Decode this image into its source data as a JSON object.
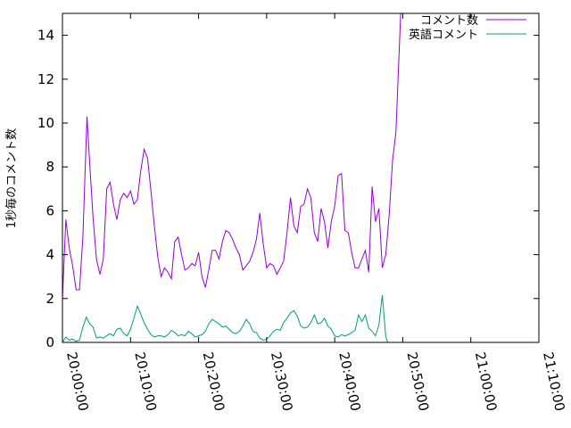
{
  "chart_data": {
    "type": "line",
    "ylabel": "1秒毎のコメント数",
    "xlabel": "",
    "ylim": [
      0,
      15
    ],
    "yticks": [
      0,
      2,
      4,
      6,
      8,
      10,
      12,
      14
    ],
    "xlim_minutes": [
      0,
      70
    ],
    "xticks": [
      {
        "label": "20:00:00",
        "minute": 0
      },
      {
        "label": "20:10:00",
        "minute": 10
      },
      {
        "label": "20:20:00",
        "minute": 20
      },
      {
        "label": "20:30:00",
        "minute": 30
      },
      {
        "label": "20:40:00",
        "minute": 40
      },
      {
        "label": "20:50:00",
        "minute": 50
      },
      {
        "label": "21:00:00",
        "minute": 60
      },
      {
        "label": "21:10:00",
        "minute": 70
      }
    ],
    "legend_position": "top-right",
    "grid": false,
    "series": [
      {
        "name": "コメント数",
        "color": "#9400d3",
        "points": [
          [
            0.0,
            2.0
          ],
          [
            0.5,
            5.6
          ],
          [
            1.0,
            4.3
          ],
          [
            1.5,
            3.5
          ],
          [
            2.0,
            2.4
          ],
          [
            2.5,
            2.4
          ],
          [
            3.0,
            4.8
          ],
          [
            3.6,
            10.3
          ],
          [
            4.0,
            8.2
          ],
          [
            4.5,
            5.7
          ],
          [
            5.0,
            3.8
          ],
          [
            5.5,
            3.1
          ],
          [
            6.0,
            3.8
          ],
          [
            6.5,
            7.0
          ],
          [
            7.0,
            7.3
          ],
          [
            7.5,
            6.3
          ],
          [
            8.0,
            5.6
          ],
          [
            8.5,
            6.5
          ],
          [
            9.0,
            6.8
          ],
          [
            9.5,
            6.6
          ],
          [
            10.0,
            6.9
          ],
          [
            10.5,
            6.3
          ],
          [
            11.0,
            6.5
          ],
          [
            11.5,
            7.8
          ],
          [
            12.0,
            8.8
          ],
          [
            12.5,
            8.4
          ],
          [
            13.0,
            6.9
          ],
          [
            13.5,
            5.3
          ],
          [
            14.0,
            3.9
          ],
          [
            14.5,
            3.0
          ],
          [
            15.0,
            3.4
          ],
          [
            15.5,
            3.2
          ],
          [
            16.0,
            2.9
          ],
          [
            16.5,
            4.6
          ],
          [
            17.0,
            4.8
          ],
          [
            17.5,
            4.0
          ],
          [
            18.0,
            3.3
          ],
          [
            18.5,
            3.4
          ],
          [
            19.0,
            3.6
          ],
          [
            19.5,
            3.5
          ],
          [
            20.0,
            4.1
          ],
          [
            20.5,
            3.0
          ],
          [
            21.0,
            2.5
          ],
          [
            21.5,
            3.3
          ],
          [
            22.0,
            4.2
          ],
          [
            22.5,
            4.2
          ],
          [
            23.0,
            3.8
          ],
          [
            23.5,
            4.6
          ],
          [
            24.0,
            5.1
          ],
          [
            24.5,
            5.0
          ],
          [
            25.0,
            4.7
          ],
          [
            25.5,
            4.3
          ],
          [
            26.0,
            4.0
          ],
          [
            26.5,
            3.3
          ],
          [
            27.0,
            3.5
          ],
          [
            27.5,
            3.7
          ],
          [
            28.0,
            4.1
          ],
          [
            28.5,
            4.7
          ],
          [
            29.0,
            5.9
          ],
          [
            29.5,
            4.5
          ],
          [
            30.0,
            3.4
          ],
          [
            30.5,
            3.6
          ],
          [
            31.0,
            3.5
          ],
          [
            31.5,
            3.1
          ],
          [
            32.0,
            3.4
          ],
          [
            32.5,
            3.7
          ],
          [
            33.0,
            5.0
          ],
          [
            33.5,
            6.6
          ],
          [
            34.0,
            5.3
          ],
          [
            34.5,
            5.0
          ],
          [
            35.0,
            6.2
          ],
          [
            35.5,
            6.3
          ],
          [
            36.0,
            7.0
          ],
          [
            36.5,
            6.6
          ],
          [
            37.0,
            5.0
          ],
          [
            37.5,
            4.6
          ],
          [
            38.0,
            6.1
          ],
          [
            38.5,
            5.5
          ],
          [
            39.0,
            4.3
          ],
          [
            39.5,
            5.5
          ],
          [
            40.0,
            6.2
          ],
          [
            40.5,
            7.6
          ],
          [
            41.0,
            7.7
          ],
          [
            41.5,
            5.1
          ],
          [
            42.0,
            5.0
          ],
          [
            42.5,
            4.1
          ],
          [
            43.0,
            3.4
          ],
          [
            43.5,
            3.4
          ],
          [
            44.0,
            3.8
          ],
          [
            44.5,
            4.2
          ],
          [
            45.0,
            3.2
          ],
          [
            45.5,
            7.1
          ],
          [
            46.0,
            5.5
          ],
          [
            46.5,
            6.1
          ],
          [
            47.0,
            3.4
          ],
          [
            47.5,
            4.0
          ],
          [
            48.0,
            5.8
          ],
          [
            48.5,
            8.3
          ],
          [
            49.0,
            9.6
          ],
          [
            49.7,
            15.0
          ]
        ]
      },
      {
        "name": "英語コメント",
        "color": "#009e73",
        "points": [
          [
            0.0,
            0.0
          ],
          [
            0.5,
            0.25
          ],
          [
            1.0,
            0.1
          ],
          [
            1.5,
            0.15
          ],
          [
            2.0,
            0.05
          ],
          [
            2.5,
            0.1
          ],
          [
            3.0,
            0.7
          ],
          [
            3.5,
            1.15
          ],
          [
            4.0,
            0.85
          ],
          [
            4.5,
            0.7
          ],
          [
            5.0,
            0.2
          ],
          [
            5.5,
            0.25
          ],
          [
            6.0,
            0.2
          ],
          [
            6.5,
            0.3
          ],
          [
            7.0,
            0.4
          ],
          [
            7.5,
            0.3
          ],
          [
            8.0,
            0.6
          ],
          [
            8.5,
            0.65
          ],
          [
            9.0,
            0.4
          ],
          [
            9.5,
            0.3
          ],
          [
            10.0,
            0.6
          ],
          [
            10.5,
            1.1
          ],
          [
            11.0,
            1.65
          ],
          [
            11.5,
            1.3
          ],
          [
            12.0,
            0.9
          ],
          [
            12.5,
            0.6
          ],
          [
            13.0,
            0.35
          ],
          [
            13.5,
            0.25
          ],
          [
            14.0,
            0.3
          ],
          [
            14.5,
            0.3
          ],
          [
            15.0,
            0.25
          ],
          [
            15.5,
            0.35
          ],
          [
            16.0,
            0.55
          ],
          [
            16.5,
            0.45
          ],
          [
            17.0,
            0.3
          ],
          [
            17.5,
            0.35
          ],
          [
            18.0,
            0.3
          ],
          [
            18.5,
            0.5
          ],
          [
            19.0,
            0.4
          ],
          [
            19.5,
            0.25
          ],
          [
            20.0,
            0.3
          ],
          [
            20.5,
            0.35
          ],
          [
            21.0,
            0.5
          ],
          [
            21.5,
            0.85
          ],
          [
            22.0,
            1.05
          ],
          [
            22.5,
            0.95
          ],
          [
            23.0,
            0.85
          ],
          [
            23.5,
            0.7
          ],
          [
            24.0,
            0.75
          ],
          [
            24.5,
            0.6
          ],
          [
            25.0,
            0.45
          ],
          [
            25.5,
            0.4
          ],
          [
            26.0,
            0.5
          ],
          [
            26.5,
            0.75
          ],
          [
            27.0,
            1.05
          ],
          [
            27.5,
            0.85
          ],
          [
            28.0,
            0.5
          ],
          [
            28.5,
            0.45
          ],
          [
            29.0,
            0.2
          ],
          [
            29.5,
            0.1
          ],
          [
            30.0,
            0.15
          ],
          [
            30.5,
            0.3
          ],
          [
            31.0,
            0.5
          ],
          [
            31.5,
            0.6
          ],
          [
            32.0,
            0.55
          ],
          [
            32.5,
            0.9
          ],
          [
            33.0,
            1.1
          ],
          [
            33.5,
            1.35
          ],
          [
            34.0,
            1.45
          ],
          [
            34.5,
            1.2
          ],
          [
            35.0,
            0.75
          ],
          [
            35.5,
            0.65
          ],
          [
            36.0,
            0.7
          ],
          [
            36.5,
            0.9
          ],
          [
            37.0,
            1.25
          ],
          [
            37.5,
            0.85
          ],
          [
            38.0,
            0.9
          ],
          [
            38.5,
            1.1
          ],
          [
            39.0,
            0.75
          ],
          [
            39.5,
            0.6
          ],
          [
            40.0,
            0.3
          ],
          [
            40.5,
            0.25
          ],
          [
            41.0,
            0.35
          ],
          [
            41.5,
            0.3
          ],
          [
            42.0,
            0.35
          ],
          [
            42.5,
            0.45
          ],
          [
            43.0,
            0.55
          ],
          [
            43.5,
            1.25
          ],
          [
            44.0,
            0.95
          ],
          [
            44.5,
            1.25
          ],
          [
            45.0,
            0.65
          ],
          [
            45.5,
            0.5
          ],
          [
            46.0,
            0.3
          ],
          [
            46.5,
            0.8
          ],
          [
            47.0,
            2.15
          ],
          [
            47.5,
            0.25
          ],
          [
            47.8,
            0.0
          ]
        ]
      }
    ]
  }
}
